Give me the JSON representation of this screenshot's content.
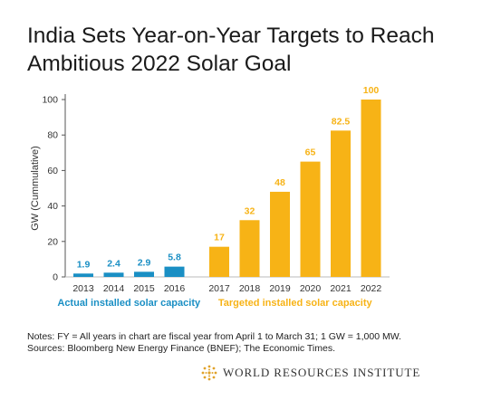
{
  "title_line1": "India Sets Year-on-Year Targets to Reach",
  "title_line2": "Ambitious 2022 Solar Goal",
  "notes_line1": "Notes: FY = All years in chart are fiscal year from April 1 to March 31; 1 GW = 1,000 MW.",
  "notes_line2": "Sources: Bloomberg New Energy Finance (BNEF); The Economic Times.",
  "logo_text": "WORLD RESOURCES INSTITUTE",
  "colors": {
    "actual": "#1a8fc4",
    "target": "#f7b316",
    "title": "#1a1a1a",
    "axis": "#555555"
  },
  "chart_data": {
    "type": "bar",
    "ylabel": "GW (Cummulative)",
    "ylim": [
      0,
      100
    ],
    "yticks": [
      0,
      20,
      40,
      60,
      80,
      100
    ],
    "grid": false,
    "groups": [
      {
        "name": "Actual installed solar capacity",
        "color": "#1a8fc4",
        "categories": [
          "2013",
          "2014",
          "2015",
          "2016"
        ],
        "values": [
          1.9,
          2.4,
          2.9,
          5.8
        ],
        "value_labels": [
          "1.9",
          "2.4",
          "2.9",
          "5.8"
        ]
      },
      {
        "name": "Targeted installed solar capacity",
        "color": "#f7b316",
        "categories": [
          "2017",
          "2018",
          "2019",
          "2020",
          "2021",
          "2022"
        ],
        "values": [
          17,
          32,
          48,
          65,
          82.5,
          100
        ],
        "value_labels": [
          "17",
          "32",
          "48",
          "65",
          "82.5",
          "100"
        ]
      }
    ]
  }
}
